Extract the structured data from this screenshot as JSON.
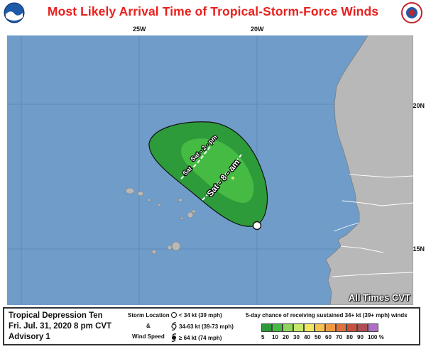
{
  "title": "Most Likely Arrival Time of Tropical-Storm-Force Winds",
  "top_ticks": [
    "25W",
    "20W"
  ],
  "lat_ticks": [
    "20N",
    "15N"
  ],
  "map_labels": {
    "time_sat_2pm": "Sat - 2 - pm",
    "time_sat_8am": "Sat - 8 - am",
    "time_sat_small": "Sat"
  },
  "timezone_label": "All Times CVT",
  "storm": {
    "name": "Tropical Depression Ten",
    "datetime": "Fri. Jul. 31, 2020  8 pm CVT",
    "advisory": "Advisory 1"
  },
  "legend": {
    "storm_location_label": "Storm Location",
    "amp": "&",
    "wind_speed_label": "Wind Speed",
    "items": [
      "< 34 kt (39 mph)",
      "34-63 kt (39-73 mph)",
      "≥ 64 kt (74 mph)"
    ]
  },
  "probability": {
    "title": "5-day chance of receiving sustained 34+ kt (39+ mph) winds",
    "labels": [
      "5",
      "10",
      "20",
      "30",
      "40",
      "50",
      "60",
      "70",
      "80",
      "90",
      "100 %"
    ],
    "colors": [
      "#2e9b3a",
      "#46bb44",
      "#8fd65a",
      "#c7e86a",
      "#f1e75f",
      "#f5c24f",
      "#f29946",
      "#e2703e",
      "#c9523c",
      "#ad4f55",
      "#b06fc6"
    ]
  },
  "colors": {
    "ocean": "#6f9cc9",
    "land": "#b8b8b8",
    "zone_outer": "#2e9b3a",
    "zone_inner": "#46bb44",
    "title": "#e8201e"
  }
}
